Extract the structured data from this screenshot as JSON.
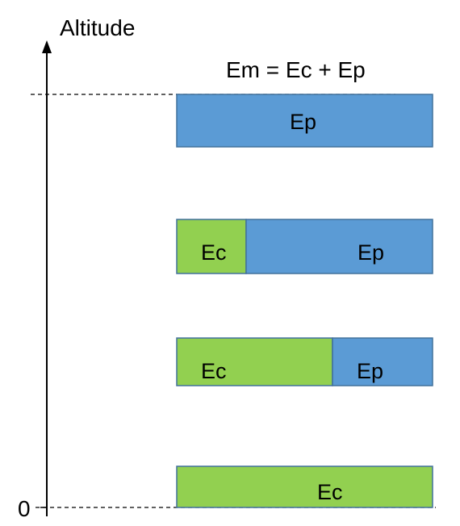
{
  "axis": {
    "label": "Altitude",
    "zero_label": "0"
  },
  "equation": "Em = Ec + Ep",
  "colors": {
    "ec": "#92d050",
    "ep": "#5b9bd5",
    "stroke": "#41719c",
    "axis": "#000000"
  },
  "bars": [
    {
      "level": "top",
      "ec_fraction": 0.0,
      "ec_label": "",
      "ep_label": "Ep"
    },
    {
      "level": "upper-middle",
      "ec_fraction": 0.27,
      "ec_label": "Ec",
      "ep_label": "Ep"
    },
    {
      "level": "lower-middle",
      "ec_fraction": 0.61,
      "ec_label": "Ec",
      "ep_label": "Ep"
    },
    {
      "level": "ground",
      "ec_fraction": 1.0,
      "ec_label": "Ec",
      "ep_label": ""
    }
  ]
}
